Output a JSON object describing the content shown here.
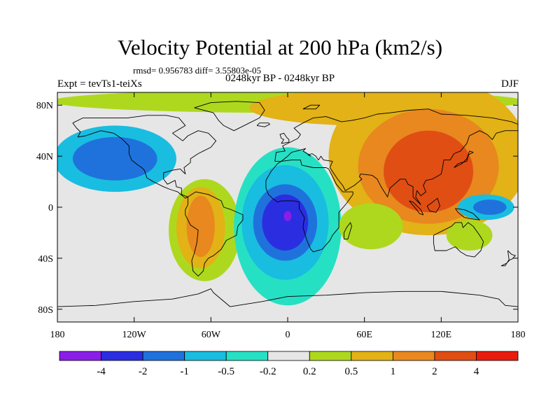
{
  "title": "Velocity Potential at 200 hPa (km2/s)",
  "stats": "rmsd= 0.956783 diff= 3.55803e-05",
  "left_label": "Expt = tevTs1-teiXs",
  "center_label": "0248kyr BP - 0248kyr BP",
  "right_label": "DJF",
  "lat_ticks": [
    {
      "text": "80N",
      "lat": 80
    },
    {
      "text": "40N",
      "lat": 40
    },
    {
      "text": "0",
      "lat": 0
    },
    {
      "text": "40S",
      "lat": -40
    },
    {
      "text": "80S",
      "lat": -80
    }
  ],
  "lon_ticks": [
    {
      "text": "180",
      "lon": -180
    },
    {
      "text": "120W",
      "lon": -120
    },
    {
      "text": "60W",
      "lon": -60
    },
    {
      "text": "0",
      "lon": 0
    },
    {
      "text": "60E",
      "lon": 60
    },
    {
      "text": "120E",
      "lon": 120
    },
    {
      "text": "180",
      "lon": 180
    }
  ],
  "colorbar": {
    "colors": [
      "#8a1ee8",
      "#2a2ee0",
      "#1f72dc",
      "#19bde0",
      "#26e0c4",
      "#e6e6e6",
      "#aed81e",
      "#e2b216",
      "#e8881e",
      "#e04e14",
      "#e81c0e"
    ],
    "labels": [
      "-4",
      "-2",
      "-1",
      "-0.5",
      "-0.2",
      "0.2",
      "0.5",
      "1",
      "2",
      "4"
    ]
  },
  "field": {
    "background": "#e6e6e6",
    "regions": [
      {
        "name": "north-polar-band",
        "color": "#aed81e",
        "lon": 0,
        "lat": 83,
        "rx": 185,
        "ry": 9
      },
      {
        "name": "eurasia-positive-broad",
        "color": "#e2b216",
        "lon": 110,
        "lat": 40,
        "rx": 78,
        "ry": 62
      },
      {
        "name": "arctic-positive",
        "color": "#e2b216",
        "lon": 60,
        "lat": 78,
        "rx": 90,
        "ry": 14
      },
      {
        "name": "asia-orange",
        "color": "#e8881e",
        "lon": 110,
        "lat": 32,
        "rx": 55,
        "ry": 45
      },
      {
        "name": "asia-red",
        "color": "#e04e14",
        "lon": 110,
        "lat": 28,
        "rx": 35,
        "ry": 32
      },
      {
        "name": "south-america-green",
        "color": "#aed81e",
        "lon": -65,
        "lat": -18,
        "rx": 28,
        "ry": 40
      },
      {
        "name": "south-america-yellow",
        "color": "#e2b216",
        "lon": -68,
        "lat": -16,
        "rx": 19,
        "ry": 32
      },
      {
        "name": "south-america-orange",
        "color": "#e8881e",
        "lon": -68,
        "lat": -15,
        "rx": 11,
        "ry": 24
      },
      {
        "name": "north-pacific-cyan",
        "color": "#19bde0",
        "lon": -135,
        "lat": 38,
        "rx": 48,
        "ry": 26
      },
      {
        "name": "north-pacific-blue",
        "color": "#1f72dc",
        "lon": -135,
        "lat": 38,
        "rx": 33,
        "ry": 17
      },
      {
        "name": "atlantic-green",
        "color": "#26e0c4",
        "lon": 0,
        "lat": -15,
        "rx": 42,
        "ry": 62
      },
      {
        "name": "atlantic-cyan",
        "color": "#19bde0",
        "lon": -2,
        "lat": -12,
        "rx": 34,
        "ry": 45
      },
      {
        "name": "atlantic-blue",
        "color": "#1f72dc",
        "lon": -2,
        "lat": -12,
        "rx": 25,
        "ry": 30
      },
      {
        "name": "atlantic-darkblue",
        "color": "#2a2ee0",
        "lon": -2,
        "lat": -12,
        "rx": 18,
        "ry": 22
      },
      {
        "name": "atlantic-purple-core",
        "color": "#8a1ee8",
        "lon": 0,
        "lat": -7,
        "rx": 3,
        "ry": 4
      },
      {
        "name": "west-pacific-cyan",
        "color": "#19bde0",
        "lon": 155,
        "lat": 0,
        "rx": 22,
        "ry": 10
      },
      {
        "name": "west-pacific-blue",
        "color": "#1f72dc",
        "lon": 158,
        "lat": 0,
        "rx": 13,
        "ry": 6
      },
      {
        "name": "australia-green",
        "color": "#aed81e",
        "lon": 142,
        "lat": -22,
        "rx": 18,
        "ry": 12
      },
      {
        "name": "southwest-indian-green",
        "color": "#aed81e",
        "lon": 65,
        "lat": -15,
        "rx": 25,
        "ry": 18
      }
    ]
  }
}
